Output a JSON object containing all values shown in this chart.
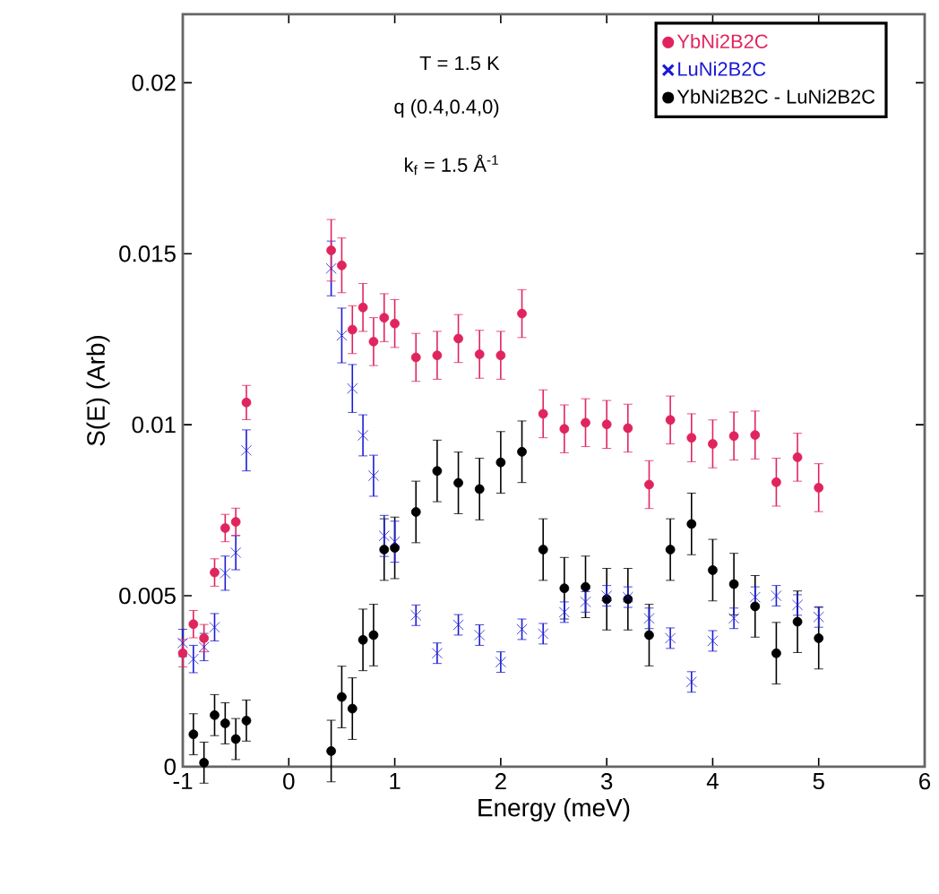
{
  "chart_data": {
    "type": "scatter",
    "xlabel": "Energy (meV)",
    "ylabel": "S(E) (Arb)",
    "xlim": [
      -1,
      6
    ],
    "ylim": [
      0,
      0.022
    ],
    "xticks": [
      -1,
      0,
      1,
      2,
      3,
      4,
      5,
      6
    ],
    "yticks": [
      0,
      0.005,
      0.01,
      0.015,
      0.02
    ],
    "legend": "top right",
    "grid": false,
    "annotations": [
      "T = 1.5 K",
      "q (0.4,0.4,0)",
      "k$_{f}$ = 1.5 Å$^{-1}$"
    ],
    "series": [
      {
        "name": "YbNi2B2C",
        "color": "#e0245e",
        "marker": "circle",
        "x": [
          -1.0,
          -0.9,
          -0.8,
          -0.7,
          -0.6,
          -0.5,
          -0.4,
          0.4,
          0.5,
          0.6,
          0.7,
          0.8,
          0.9,
          1.0,
          1.2,
          1.4,
          1.6,
          1.8,
          2.0,
          2.2,
          2.4,
          2.6,
          2.8,
          3.0,
          3.2,
          3.4,
          3.6,
          3.8,
          4.0,
          4.2,
          4.4,
          4.6,
          4.8,
          5.0
        ],
        "values": [
          0.00332,
          0.00417,
          0.00376,
          0.00568,
          0.00698,
          0.00716,
          0.01065,
          0.0151,
          0.01466,
          0.01278,
          0.01343,
          0.01243,
          0.01313,
          0.01296,
          0.01197,
          0.01203,
          0.01252,
          0.01206,
          0.01203,
          0.01325,
          0.01032,
          0.00988,
          0.01006,
          0.01001,
          0.0099,
          0.00825,
          0.01014,
          0.00962,
          0.00944,
          0.00967,
          0.0097,
          0.00832,
          0.00905,
          0.00816
        ],
        "errors": [
          0.0004,
          0.0004,
          0.0004,
          0.0004,
          0.0004,
          0.0004,
          0.0005,
          0.0009,
          0.0008,
          0.0007,
          0.0007,
          0.0007,
          0.0007,
          0.0007,
          0.0007,
          0.0007,
          0.0007,
          0.0007,
          0.0007,
          0.0007,
          0.0007,
          0.0007,
          0.0007,
          0.0007,
          0.0007,
          0.0007,
          0.0007,
          0.0007,
          0.0007,
          0.0007,
          0.0007,
          0.0007,
          0.0007,
          0.0007
        ]
      },
      {
        "name": "LuNi2B2C",
        "color": "#1a1ad6",
        "marker": "cross",
        "x": [
          -1.0,
          -0.9,
          -0.8,
          -0.7,
          -0.6,
          -0.5,
          -0.4,
          0.4,
          0.5,
          0.6,
          0.7,
          0.8,
          0.9,
          1.0,
          1.2,
          1.4,
          1.6,
          1.8,
          2.0,
          2.2,
          2.4,
          2.6,
          2.8,
          3.0,
          3.2,
          3.4,
          3.6,
          3.8,
          4.0,
          4.2,
          4.4,
          4.6,
          4.8,
          5.0
        ],
        "values": [
          0.00362,
          0.00315,
          0.0035,
          0.00408,
          0.00566,
          0.00626,
          0.00925,
          0.01457,
          0.01261,
          0.01106,
          0.00969,
          0.00851,
          0.00675,
          0.00658,
          0.00443,
          0.00332,
          0.00415,
          0.00385,
          0.00306,
          0.00402,
          0.00389,
          0.00452,
          0.00482,
          0.005,
          0.00496,
          0.00434,
          0.00376,
          0.00248,
          0.00368,
          0.00434,
          0.00496,
          0.005,
          0.00473,
          0.00438
        ],
        "errors": [
          0.0004,
          0.0004,
          0.0004,
          0.0004,
          0.0005,
          0.0005,
          0.0006,
          0.0008,
          0.0008,
          0.0007,
          0.0006,
          0.0006,
          0.0006,
          0.0006,
          0.0003,
          0.0003,
          0.0003,
          0.0003,
          0.0003,
          0.0003,
          0.0003,
          0.0003,
          0.0003,
          0.0003,
          0.0003,
          0.0003,
          0.0003,
          0.0003,
          0.0003,
          0.0003,
          0.0003,
          0.0003,
          0.0003,
          0.0003
        ]
      },
      {
        "name": "YbNi2B2C - LuNi2B2C",
        "color": "#000000",
        "marker": "circle",
        "x": [
          -0.9,
          -0.8,
          -0.7,
          -0.6,
          -0.5,
          -0.4,
          0.4,
          0.5,
          0.6,
          0.7,
          0.8,
          0.9,
          1.0,
          1.2,
          1.4,
          1.6,
          1.8,
          2.0,
          2.2,
          2.4,
          2.6,
          2.8,
          3.0,
          3.2,
          3.4,
          3.6,
          3.8,
          4.0,
          4.2,
          4.4,
          4.6,
          4.8,
          5.0
        ],
        "values": [
          0.00095,
          0.00012,
          0.00151,
          0.00127,
          0.00081,
          0.00135,
          0.00046,
          0.00204,
          0.0017,
          0.00371,
          0.00385,
          0.00635,
          0.0064,
          0.00745,
          0.00865,
          0.0083,
          0.00812,
          0.0089,
          0.00921,
          0.00635,
          0.00522,
          0.00526,
          0.0049,
          0.0049,
          0.00385,
          0.00635,
          0.0071,
          0.00575,
          0.00534,
          0.00469,
          0.00332,
          0.00424,
          0.00376
        ],
        "errors": [
          0.0006,
          0.0006,
          0.0006,
          0.0006,
          0.0006,
          0.0006,
          0.0009,
          0.0009,
          0.0009,
          0.0009,
          0.0009,
          0.0009,
          0.0009,
          0.0009,
          0.0009,
          0.0009,
          0.0009,
          0.0009,
          0.0009,
          0.0009,
          0.0009,
          0.0009,
          0.0009,
          0.0009,
          0.0009,
          0.0009,
          0.0009,
          0.0009,
          0.0009,
          0.0009,
          0.0009,
          0.0009,
          0.0009
        ]
      }
    ]
  }
}
